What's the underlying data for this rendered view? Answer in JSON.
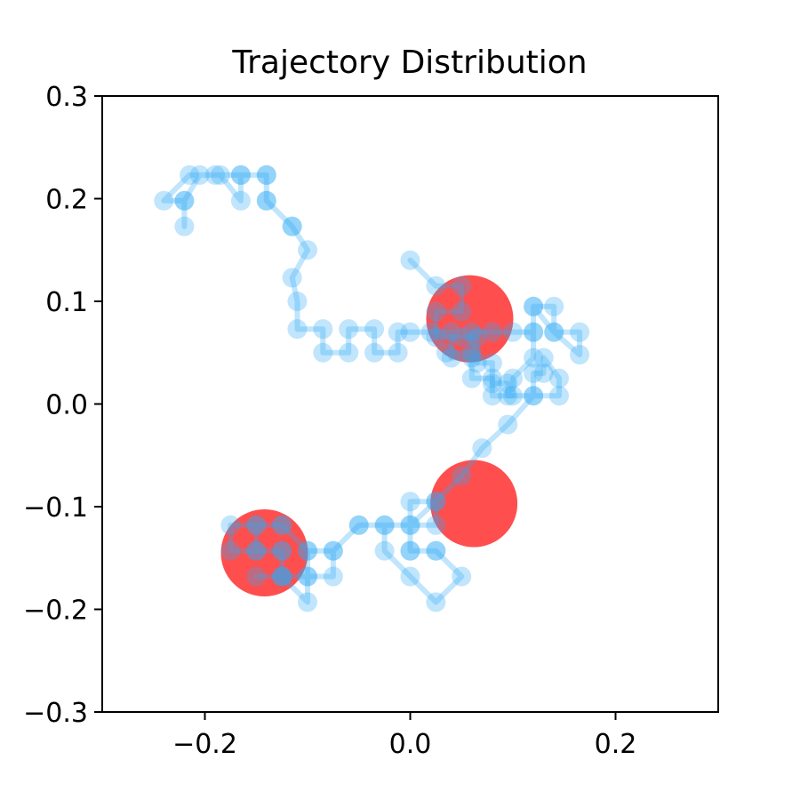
{
  "chart_data": {
    "type": "scatter",
    "title": "Trajectory Distribution",
    "xlabel": "",
    "ylabel": "",
    "xlim": [
      -0.3,
      0.3
    ],
    "ylim": [
      -0.3,
      0.3
    ],
    "xticks": [
      -0.2,
      0.0,
      0.2
    ],
    "xtick_labels": [
      "−0.2",
      "0.0",
      "0.2"
    ],
    "yticks": [
      -0.3,
      -0.2,
      -0.1,
      0.0,
      0.1,
      0.2,
      0.3
    ],
    "ytick_labels": [
      "−0.3",
      "−0.2",
      "−0.1",
      "0.0",
      "0.1",
      "0.2",
      "0.3"
    ],
    "grid": false,
    "legend": false,
    "colors": {
      "trajectory": "#2ea8f5",
      "target": "#ff3b3b"
    },
    "targets": [
      {
        "x": 0.058,
        "y": 0.083
      },
      {
        "x": 0.062,
        "y": -0.097
      },
      {
        "x": -0.142,
        "y": -0.145
      }
    ],
    "trajectory": [
      [
        0.0,
        0.14
      ],
      [
        0.025,
        0.115
      ],
      [
        0.05,
        0.115
      ],
      [
        0.05,
        0.09
      ],
      [
        0.025,
        0.09
      ],
      [
        0.025,
        0.065
      ],
      [
        0.05,
        0.065
      ],
      [
        0.065,
        0.065
      ],
      [
        0.065,
        0.04
      ],
      [
        0.08,
        0.04
      ],
      [
        0.08,
        0.02
      ],
      [
        0.095,
        0.02
      ],
      [
        0.095,
        0.008
      ],
      [
        0.12,
        0.008
      ],
      [
        0.12,
        0.03
      ],
      [
        0.13,
        0.03
      ],
      [
        0.13,
        0.045
      ],
      [
        0.145,
        0.025
      ],
      [
        0.145,
        0.008
      ],
      [
        0.12,
        0.008
      ],
      [
        0.095,
        -0.02
      ],
      [
        0.07,
        -0.043
      ],
      [
        0.05,
        -0.07
      ],
      [
        0.025,
        -0.095
      ],
      [
        0.0,
        -0.118
      ],
      [
        -0.025,
        -0.118
      ],
      [
        -0.05,
        -0.118
      ],
      [
        -0.075,
        -0.143
      ],
      [
        -0.075,
        -0.168
      ],
      [
        -0.1,
        -0.168
      ],
      [
        -0.1,
        -0.143
      ],
      [
        -0.125,
        -0.118
      ],
      [
        -0.15,
        -0.118
      ],
      [
        -0.175,
        -0.118
      ],
      [
        -0.175,
        -0.143
      ],
      [
        -0.15,
        -0.143
      ],
      [
        -0.125,
        -0.143
      ],
      [
        -0.125,
        -0.168
      ],
      [
        -0.15,
        -0.168
      ],
      [
        -0.125,
        -0.168
      ],
      [
        -0.1,
        -0.193
      ],
      [
        -0.1,
        -0.168
      ],
      [
        -0.125,
        -0.168
      ],
      [
        -0.125,
        -0.143
      ],
      [
        -0.15,
        -0.143
      ],
      [
        -0.15,
        -0.118
      ],
      [
        -0.125,
        -0.118
      ],
      [
        -0.1,
        -0.143
      ],
      [
        -0.075,
        -0.143
      ],
      [
        -0.05,
        -0.118
      ],
      [
        -0.025,
        -0.118
      ],
      [
        -0.025,
        -0.143
      ],
      [
        0.0,
        -0.168
      ],
      [
        0.025,
        -0.193
      ],
      [
        0.05,
        -0.168
      ],
      [
        0.025,
        -0.143
      ],
      [
        0.0,
        -0.143
      ],
      [
        0.0,
        -0.118
      ],
      [
        0.025,
        -0.118
      ],
      [
        0.025,
        -0.095
      ],
      [
        0.0,
        -0.095
      ],
      [
        0.0,
        -0.143
      ],
      [
        0.025,
        -0.143
      ]
    ],
    "trajectory2": [
      [
        0.035,
        0.05
      ],
      [
        0.06,
        0.05
      ],
      [
        0.06,
        0.025
      ],
      [
        0.08,
        0.025
      ],
      [
        0.08,
        0.008
      ],
      [
        0.1,
        0.008
      ],
      [
        0.1,
        0.025
      ],
      [
        0.12,
        0.045
      ],
      [
        0.12,
        0.07
      ],
      [
        0.12,
        0.095
      ],
      [
        0.14,
        0.095
      ],
      [
        0.14,
        0.07
      ],
      [
        0.165,
        0.07
      ],
      [
        0.165,
        0.048
      ],
      [
        0.14,
        0.07
      ],
      [
        0.12,
        0.095
      ],
      [
        0.12,
        0.07
      ],
      [
        0.1,
        0.07
      ],
      [
        0.08,
        0.07
      ],
      [
        0.06,
        0.07
      ],
      [
        0.06,
        0.045
      ],
      [
        0.04,
        0.045
      ],
      [
        0.04,
        0.07
      ],
      [
        0.02,
        0.07
      ],
      [
        0.0,
        0.07
      ],
      [
        -0.012,
        0.07
      ],
      [
        -0.012,
        0.05
      ],
      [
        -0.035,
        0.05
      ],
      [
        -0.035,
        0.073
      ],
      [
        -0.06,
        0.073
      ],
      [
        -0.06,
        0.05
      ],
      [
        -0.085,
        0.05
      ],
      [
        -0.085,
        0.073
      ],
      [
        -0.11,
        0.073
      ],
      [
        -0.11,
        0.1
      ],
      [
        -0.115,
        0.123
      ],
      [
        -0.1,
        0.15
      ],
      [
        -0.115,
        0.173
      ],
      [
        -0.14,
        0.198
      ],
      [
        -0.14,
        0.223
      ],
      [
        -0.165,
        0.223
      ],
      [
        -0.165,
        0.198
      ],
      [
        -0.185,
        0.223
      ],
      [
        -0.205,
        0.223
      ],
      [
        -0.22,
        0.198
      ],
      [
        -0.22,
        0.173
      ],
      [
        -0.22,
        0.198
      ],
      [
        -0.24,
        0.198
      ],
      [
        -0.215,
        0.223
      ],
      [
        -0.19,
        0.223
      ],
      [
        -0.165,
        0.223
      ],
      [
        -0.14,
        0.223
      ],
      [
        -0.14,
        0.198
      ],
      [
        -0.115,
        0.173
      ]
    ]
  }
}
